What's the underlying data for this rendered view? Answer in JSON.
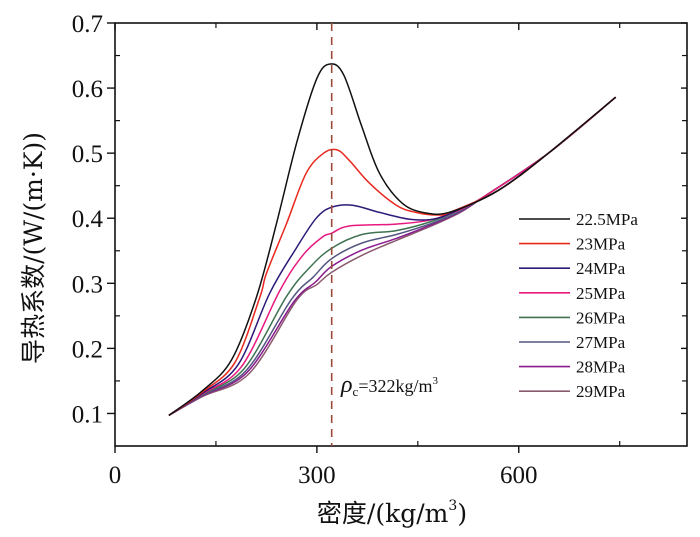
{
  "chart_data": {
    "type": "line",
    "title": "",
    "xlabel": "密度/(kg/m",
    "xlabel_sup": "3",
    "xlabel_tail": ")",
    "ylabel": "导热系数/(W/(m·K))",
    "xlim": [
      0,
      850
    ],
    "ylim": [
      0.05,
      0.7
    ],
    "x_ticks": [
      0,
      300,
      600
    ],
    "x_tick_labels": [
      "0",
      "300",
      "600"
    ],
    "x_minor_ticks": [
      150,
      450,
      750
    ],
    "y_ticks": [
      0.1,
      0.2,
      0.3,
      0.4,
      0.5,
      0.6,
      0.7
    ],
    "y_tick_labels": [
      "0.1",
      "0.2",
      "0.3",
      "0.4",
      "0.5",
      "0.6",
      "0.7"
    ],
    "y_minor_ticks": [
      0.15,
      0.25,
      0.35,
      0.45,
      0.55,
      0.65
    ],
    "grid": false,
    "legend_position": "right",
    "reference_line": {
      "x": 322,
      "style": "dashed",
      "color": "#9a4a3a"
    },
    "annotation": {
      "symbol": "ρ",
      "subscript": "c",
      "text": "=322kg/m",
      "sup": "3",
      "x": 322,
      "y": 0.1
    },
    "series": [
      {
        "name": "22.5MPa",
        "color": "#111111",
        "x": [
          80,
          130,
          173,
          210,
          240,
          271,
          300,
          320,
          340,
          367,
          393,
          427,
          462,
          500,
          570,
          644,
          744
        ],
        "y": [
          0.097,
          0.135,
          0.182,
          0.278,
          0.392,
          0.52,
          0.615,
          0.637,
          0.62,
          0.54,
          0.469,
          0.423,
          0.408,
          0.41,
          0.443,
          0.5,
          0.586
        ]
      },
      {
        "name": "23MPa",
        "color": "#e8281e",
        "x": [
          80,
          130,
          178,
          215,
          225,
          255,
          284,
          310,
          330,
          348,
          378,
          418,
          447,
          480,
          500,
          570,
          644,
          744
        ],
        "y": [
          0.097,
          0.133,
          0.178,
          0.278,
          0.315,
          0.392,
          0.469,
          0.5,
          0.505,
          0.489,
          0.454,
          0.42,
          0.409,
          0.405,
          0.41,
          0.443,
          0.5,
          0.586
        ]
      },
      {
        "name": "24MPa",
        "color": "#2d1a78",
        "x": [
          80,
          130,
          183,
          230,
          270,
          299,
          322,
          353,
          393,
          441,
          480,
          520,
          570,
          644,
          744
        ],
        "y": [
          0.097,
          0.131,
          0.175,
          0.285,
          0.355,
          0.4,
          0.417,
          0.42,
          0.409,
          0.398,
          0.4,
          0.418,
          0.443,
          0.5,
          0.586
        ]
      },
      {
        "name": "25MPa",
        "color": "#e8187e",
        "x": [
          80,
          130,
          188,
          245,
          279,
          308,
          322,
          348,
          418,
          467,
          510,
          551,
          644,
          744
        ],
        "y": [
          0.097,
          0.13,
          0.172,
          0.289,
          0.343,
          0.371,
          0.377,
          0.388,
          0.391,
          0.397,
          0.412,
          0.435,
          0.5,
          0.586
        ]
      },
      {
        "name": "26MPa",
        "color": "#3f7352",
        "x": [
          80,
          130,
          192,
          255,
          290,
          322,
          367,
          418,
          467,
          510,
          551,
          644,
          744
        ],
        "y": [
          0.097,
          0.129,
          0.169,
          0.28,
          0.325,
          0.354,
          0.375,
          0.381,
          0.394,
          0.412,
          0.435,
          0.5,
          0.586
        ]
      },
      {
        "name": "27MPa",
        "color": "#545680",
        "x": [
          80,
          130,
          195,
          262,
          295,
          322,
          367,
          418,
          470,
          515,
          551,
          644,
          744
        ],
        "y": [
          0.097,
          0.128,
          0.166,
          0.275,
          0.31,
          0.338,
          0.362,
          0.375,
          0.392,
          0.412,
          0.435,
          0.5,
          0.586
        ]
      },
      {
        "name": "28MPa",
        "color": "#8a1a8e",
        "x": [
          80,
          130,
          197,
          266,
          298,
          322,
          367,
          418,
          470,
          515,
          551,
          644,
          744
        ],
        "y": [
          0.097,
          0.127,
          0.164,
          0.272,
          0.302,
          0.326,
          0.351,
          0.369,
          0.39,
          0.411,
          0.435,
          0.5,
          0.586
        ]
      },
      {
        "name": "29MPa",
        "color": "#8a5a6e",
        "x": [
          80,
          130,
          200,
          270,
          300,
          322,
          367,
          418,
          470,
          515,
          551,
          644,
          744
        ],
        "y": [
          0.097,
          0.126,
          0.162,
          0.274,
          0.298,
          0.317,
          0.343,
          0.366,
          0.388,
          0.41,
          0.435,
          0.5,
          0.586
        ]
      }
    ]
  }
}
